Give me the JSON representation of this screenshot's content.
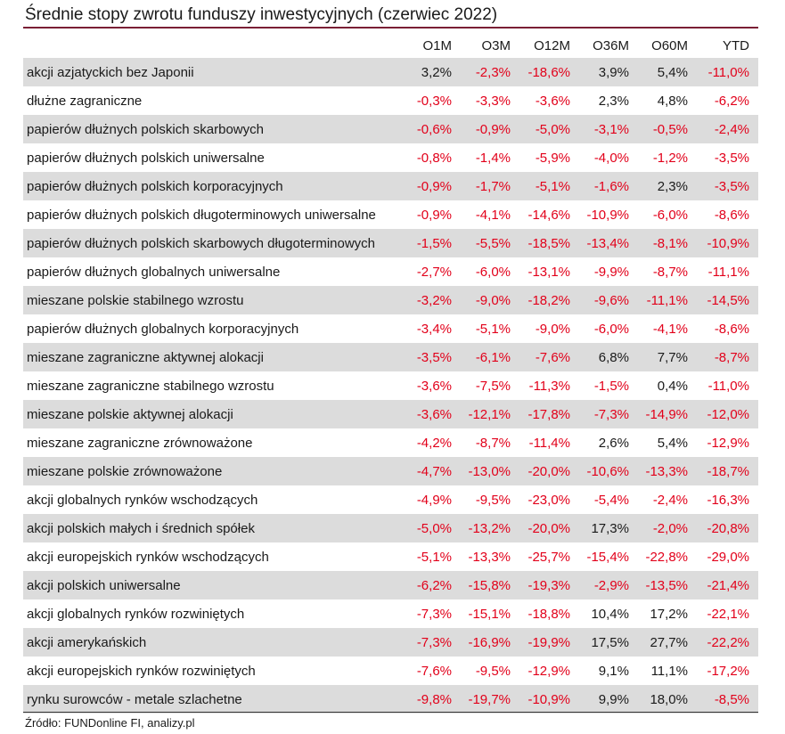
{
  "title": "Średnie stopy zwrotu funduszy inwestycyjnych (czerwiec 2022)",
  "source": "Źródło: FUNDonline FI, analizy.pl",
  "colors": {
    "negative": "#e2001a",
    "positive": "#1a1a1a",
    "row_shade": "#dcdcdc",
    "title_rule": "#7a1f35"
  },
  "chart_data": {
    "type": "table",
    "title": "Średnie stopy zwrotu funduszy inwestycyjnych (czerwiec 2022)",
    "unit": "%",
    "columns": [
      "O1M",
      "O3M",
      "O12M",
      "O36M",
      "O60M",
      "YTD"
    ],
    "rows": [
      {
        "name": "akcji azjatyckich bez Japonii",
        "values": [
          "3,2%",
          "-2,3%",
          "-18,6%",
          "3,9%",
          "5,4%",
          "-11,0%"
        ]
      },
      {
        "name": "dłużne zagraniczne",
        "values": [
          "-0,3%",
          "-3,3%",
          "-3,6%",
          "2,3%",
          "4,8%",
          "-6,2%"
        ]
      },
      {
        "name": "papierów dłużnych polskich skarbowych",
        "values": [
          "-0,6%",
          "-0,9%",
          "-5,0%",
          "-3,1%",
          "-0,5%",
          "-2,4%"
        ]
      },
      {
        "name": "papierów dłużnych polskich uniwersalne",
        "values": [
          "-0,8%",
          "-1,4%",
          "-5,9%",
          "-4,0%",
          "-1,2%",
          "-3,5%"
        ]
      },
      {
        "name": "papierów dłużnych polskich korporacyjnych",
        "values": [
          "-0,9%",
          "-1,7%",
          "-5,1%",
          "-1,6%",
          "2,3%",
          "-3,5%"
        ]
      },
      {
        "name": "papierów dłużnych polskich długoterminowych uniwersalne",
        "values": [
          "-0,9%",
          "-4,1%",
          "-14,6%",
          "-10,9%",
          "-6,0%",
          "-8,6%"
        ]
      },
      {
        "name": "papierów dłużnych polskich skarbowych długoterminowych",
        "values": [
          "-1,5%",
          "-5,5%",
          "-18,5%",
          "-13,4%",
          "-8,1%",
          "-10,9%"
        ]
      },
      {
        "name": "papierów dłużnych globalnych uniwersalne",
        "values": [
          "-2,7%",
          "-6,0%",
          "-13,1%",
          "-9,9%",
          "-8,7%",
          "-11,1%"
        ]
      },
      {
        "name": "mieszane polskie stabilnego wzrostu",
        "values": [
          "-3,2%",
          "-9,0%",
          "-18,2%",
          "-9,6%",
          "-11,1%",
          "-14,5%"
        ]
      },
      {
        "name": "papierów dłużnych globalnych korporacyjnych",
        "values": [
          "-3,4%",
          "-5,1%",
          "-9,0%",
          "-6,0%",
          "-4,1%",
          "-8,6%"
        ]
      },
      {
        "name": "mieszane zagraniczne aktywnej alokacji",
        "values": [
          "-3,5%",
          "-6,1%",
          "-7,6%",
          "6,8%",
          "7,7%",
          "-8,7%"
        ]
      },
      {
        "name": "mieszane zagraniczne stabilnego wzrostu",
        "values": [
          "-3,6%",
          "-7,5%",
          "-11,3%",
          "-1,5%",
          "0,4%",
          "-11,0%"
        ]
      },
      {
        "name": "mieszane polskie aktywnej alokacji",
        "values": [
          "-3,6%",
          "-12,1%",
          "-17,8%",
          "-7,3%",
          "-14,9%",
          "-12,0%"
        ]
      },
      {
        "name": "mieszane zagraniczne zrównoważone",
        "values": [
          "-4,2%",
          "-8,7%",
          "-11,4%",
          "2,6%",
          "5,4%",
          "-12,9%"
        ]
      },
      {
        "name": "mieszane polskie zrównoważone",
        "values": [
          "-4,7%",
          "-13,0%",
          "-20,0%",
          "-10,6%",
          "-13,3%",
          "-18,7%"
        ]
      },
      {
        "name": "akcji globalnych rynków wschodzących",
        "values": [
          "-4,9%",
          "-9,5%",
          "-23,0%",
          "-5,4%",
          "-2,4%",
          "-16,3%"
        ]
      },
      {
        "name": "akcji polskich małych i średnich spółek",
        "values": [
          "-5,0%",
          "-13,2%",
          "-20,0%",
          "17,3%",
          "-2,0%",
          "-20,8%"
        ]
      },
      {
        "name": "akcji europejskich rynków wschodzących",
        "values": [
          "-5,1%",
          "-13,3%",
          "-25,7%",
          "-15,4%",
          "-22,8%",
          "-29,0%"
        ]
      },
      {
        "name": "akcji polskich uniwersalne",
        "values": [
          "-6,2%",
          "-15,8%",
          "-19,3%",
          "-2,9%",
          "-13,5%",
          "-21,4%"
        ]
      },
      {
        "name": "akcji globalnych rynków rozwiniętych",
        "values": [
          "-7,3%",
          "-15,1%",
          "-18,8%",
          "10,4%",
          "17,2%",
          "-22,1%"
        ]
      },
      {
        "name": "akcji amerykańskich",
        "values": [
          "-7,3%",
          "-16,9%",
          "-19,9%",
          "17,5%",
          "27,7%",
          "-22,2%"
        ]
      },
      {
        "name": "akcji europejskich rynków rozwiniętych",
        "values": [
          "-7,6%",
          "-9,5%",
          "-12,9%",
          "9,1%",
          "11,1%",
          "-17,2%"
        ]
      },
      {
        "name": "rynku surowców - metale szlachetne",
        "values": [
          "-9,8%",
          "-19,7%",
          "-10,9%",
          "9,9%",
          "18,0%",
          "-8,5%"
        ]
      }
    ]
  }
}
